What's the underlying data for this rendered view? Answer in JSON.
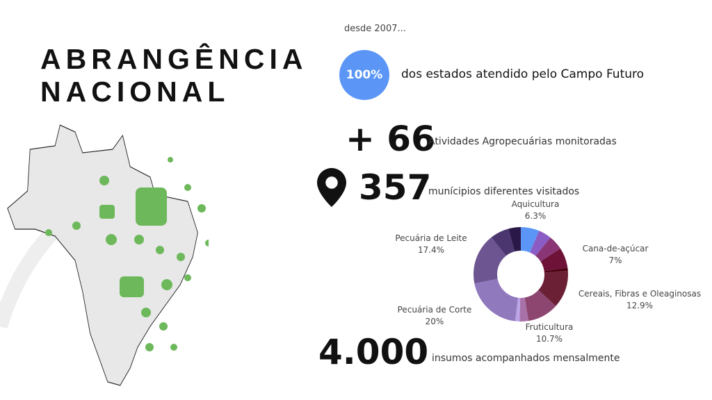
{
  "title": {
    "line1": "ABRANGÊNCIA",
    "line2": "NACIONAL"
  },
  "since": "desde 2007...",
  "states": {
    "badge": "100%",
    "text": "dos estados atendido pelo Campo Futuro"
  },
  "activities": {
    "value": "+ 66",
    "text": "Atividades Agropecuárias monitoradas"
  },
  "municipalities": {
    "value": "357",
    "text": "munícipios diferentes visitados",
    "icon": "map-pin-icon"
  },
  "inputs": {
    "value": "4.000",
    "text": "insumos acompanhados mensalmente"
  },
  "chart_data": {
    "type": "pie",
    "donut": true,
    "labels": [
      "Aquicultura",
      "Cana-de-açúcar",
      "Cereais, Fibras e Oleaginosas",
      "Fruticultura",
      "Pecuária de Corte",
      "Pecuária de Leite"
    ],
    "label_values": [
      "6.3%",
      "7%",
      "12.9%",
      "10.7%",
      "20%",
      "17.4%"
    ],
    "slices": [
      {
        "name": "Aquicultura",
        "value": 6.3,
        "color": "#5b96f7"
      },
      {
        "name": "",
        "value": 4.5,
        "color": "#8a5cc4"
      },
      {
        "name": "",
        "value": 5.0,
        "color": "#8a3575"
      },
      {
        "name": "Cana-de-açúcar",
        "value": 7,
        "color": "#6e1238"
      },
      {
        "name": "",
        "value": 1.0,
        "color": "#4a0010"
      },
      {
        "name": "Cereais, Fibras e Oleaginosas",
        "value": 12.9,
        "color": "#6b2036"
      },
      {
        "name": "Fruticultura",
        "value": 10.7,
        "color": "#8c4670"
      },
      {
        "name": "",
        "value": 3.0,
        "color": "#a872a8"
      },
      {
        "name": "",
        "value": 1.5,
        "color": "#bba4e8"
      },
      {
        "name": "Pecuária de Corte",
        "value": 20,
        "color": "#9079bd"
      },
      {
        "name": "Pecuária de Leite",
        "value": 17.4,
        "color": "#6c5590"
      },
      {
        "name": "",
        "value": 6.5,
        "color": "#4b3670"
      },
      {
        "name": "",
        "value": 4.2,
        "color": "#2a1848"
      }
    ]
  }
}
